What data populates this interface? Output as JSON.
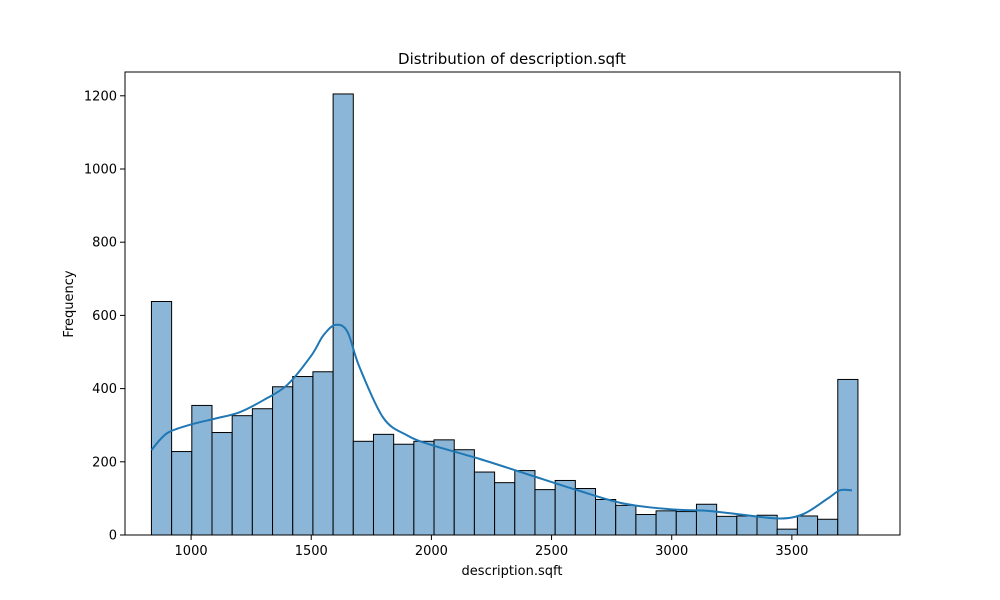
{
  "chart_data": {
    "type": "bar",
    "title": "Distribution of description.sqft",
    "xlabel": "description.sqft",
    "ylabel": "Frequency",
    "xlim": [
      725,
      3950
    ],
    "ylim": [
      0,
      1265
    ],
    "xticks": [
      1000,
      1500,
      2000,
      2500,
      3000,
      3500
    ],
    "yticks": [
      0,
      200,
      400,
      600,
      800,
      1000,
      1200
    ],
    "bin_start": 835,
    "bin_width": 84,
    "counts": [
      638,
      228,
      354,
      280,
      326,
      345,
      405,
      433,
      446,
      1205,
      256,
      275,
      248,
      256,
      260,
      233,
      172,
      143,
      176,
      124,
      149,
      127,
      97,
      81,
      56,
      66,
      64,
      84,
      51,
      52,
      54,
      16,
      52,
      43,
      425
    ],
    "bar_color": "#8bb6d7",
    "kde_color": "#1f77b4",
    "grid": false,
    "kde": {
      "x": [
        835,
        900,
        1000,
        1100,
        1200,
        1300,
        1400,
        1500,
        1550,
        1600,
        1650,
        1700,
        1800,
        1900,
        2000,
        2200,
        2400,
        2600,
        2800,
        3000,
        3150,
        3300,
        3450,
        3550,
        3650,
        3700,
        3750
      ],
      "y": [
        232,
        278,
        302,
        318,
        335,
        368,
        410,
        490,
        545,
        574,
        556,
        460,
        320,
        272,
        246,
        208,
        166,
        124,
        86,
        70,
        66,
        55,
        45,
        58,
        100,
        122,
        122
      ]
    }
  }
}
